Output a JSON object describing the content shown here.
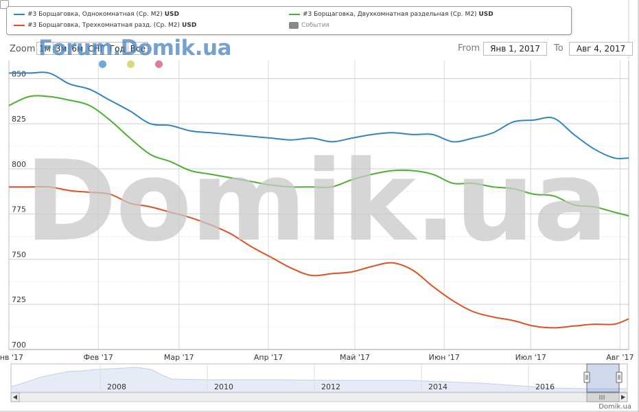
{
  "legend": {
    "items": [
      {
        "label": "#3 Борщаговка, Однокомнатная (Ср. M2)",
        "unit": "USD",
        "color": "#2e86c1"
      },
      {
        "label": "#3 Борщаговка, Двухкомнатная раздельная (Ср. M2)",
        "unit": "USD",
        "color": "#4caf2f"
      },
      {
        "label": "#3 Борщаговка, Трехкомнатная разд. (Ср. M2)",
        "unit": "USD",
        "color": "#e0501f"
      },
      {
        "label": "События",
        "unit": "",
        "color": "#888888"
      }
    ]
  },
  "zoom": {
    "label": "Zoom",
    "buttons": [
      "1м",
      "3м",
      "6м",
      "СНГ",
      "Год",
      "Все"
    ]
  },
  "watermark": {
    "small": "Forum.Domik.ua",
    "big": "Domik.ua"
  },
  "range": {
    "from_label": "From",
    "from_value": "Янв 1, 2017",
    "to_label": "To",
    "to_value": "Авг 4, 2017"
  },
  "markers": {
    "colors": [
      "#6fa7dc",
      "#d6d87a",
      "#db7f9b"
    ]
  },
  "navigator": {
    "years": [
      "2008",
      "2010",
      "2012",
      "2014",
      "2016"
    ]
  },
  "footer": {
    "credit": "Domik.ua"
  },
  "chart_data": {
    "type": "line",
    "x": [
      "2017-01-01",
      "2017-01-08",
      "2017-01-15",
      "2017-01-22",
      "2017-01-29",
      "2017-02-05",
      "2017-02-12",
      "2017-02-19",
      "2017-02-26",
      "2017-03-05",
      "2017-03-12",
      "2017-03-19",
      "2017-03-26",
      "2017-04-02",
      "2017-04-09",
      "2017-04-16",
      "2017-04-23",
      "2017-04-30",
      "2017-05-07",
      "2017-05-14",
      "2017-05-21",
      "2017-05-28",
      "2017-06-04",
      "2017-06-11",
      "2017-06-18",
      "2017-06-25",
      "2017-07-02",
      "2017-07-09",
      "2017-07-16",
      "2017-07-23",
      "2017-07-30",
      "2017-08-04"
    ],
    "xticks": [
      "Янв '17",
      "Фев '17",
      "Мар '17",
      "Апр '17",
      "Май '17",
      "Июн '17",
      "Июл '17",
      "Авг '17"
    ],
    "yticks": [
      850,
      825,
      800,
      775,
      750,
      725,
      700
    ],
    "ylim": [
      700,
      860
    ],
    "series": [
      {
        "name": "#3 Борщаговка, Однокомнатная (Ср. M2)",
        "color": "#2e86c1",
        "values": [
          853,
          853,
          853,
          847,
          844,
          838,
          832,
          825,
          824,
          821,
          820,
          819,
          818,
          817,
          816,
          817,
          815,
          817,
          819,
          820,
          819,
          819,
          815,
          817,
          820,
          826,
          827,
          828,
          819,
          811,
          806,
          806
        ]
      },
      {
        "name": "#3 Борщаговка, Двухкомнатная раздельная (Ср. M2)",
        "color": "#4caf2f",
        "values": [
          835,
          840,
          840,
          838,
          835,
          827,
          817,
          808,
          804,
          799,
          797,
          795,
          793,
          791,
          790,
          790,
          790,
          794,
          797,
          799,
          799,
          797,
          792,
          792,
          790,
          789,
          786,
          785,
          780,
          779,
          776,
          774
        ]
      },
      {
        "name": "#3 Борщаговка, Трехкомнатная разд. (Ср. M2)",
        "color": "#e0501f",
        "values": [
          790,
          790,
          790,
          788,
          787,
          786,
          781,
          779,
          776,
          773,
          769,
          764,
          757,
          751,
          745,
          741,
          742,
          743,
          746,
          748,
          744,
          735,
          727,
          721,
          718,
          716,
          713,
          712,
          713,
          714,
          714,
          717
        ]
      }
    ]
  }
}
